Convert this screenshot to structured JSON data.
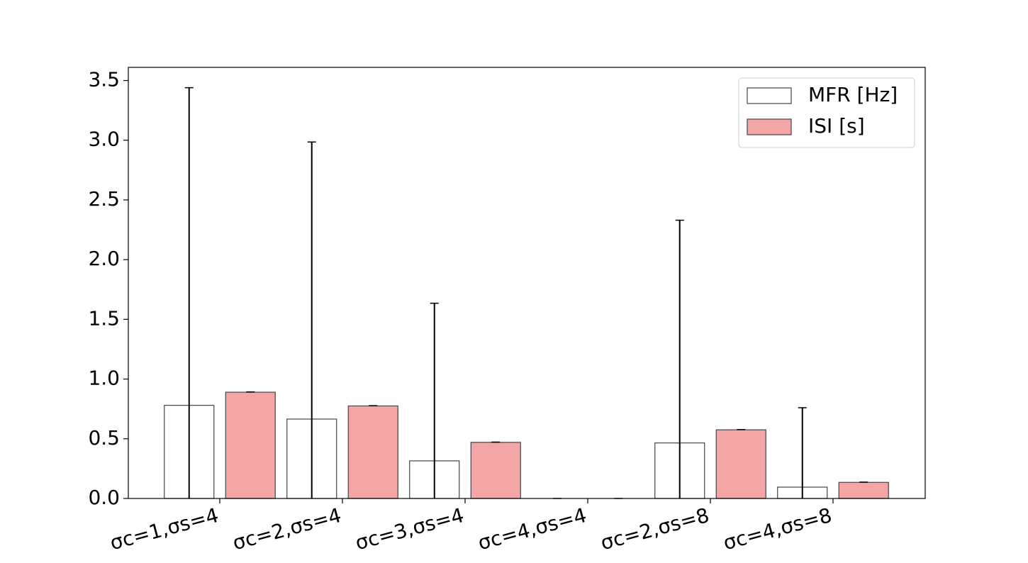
{
  "chart_data": {
    "type": "bar",
    "categories": [
      "σc=1,σs=4",
      "σc=2,σs=4",
      "σc=3,σs=4",
      "σc=4,σs=4",
      "σc=2,σs=8",
      "σc=4,σs=8"
    ],
    "series": [
      {
        "name": "MFR [Hz]",
        "color": "#ffffff",
        "values": [
          0.78,
          0.665,
          0.315,
          0,
          0.465,
          0.095
        ],
        "errors": [
          2.66,
          2.32,
          1.32,
          0,
          1.865,
          0.665
        ]
      },
      {
        "name": "ISI [s]",
        "color": "#f4a6a6",
        "values": [
          0.89,
          0.775,
          0.47,
          0,
          0.575,
          0.135
        ],
        "errors": [
          0.002,
          0.002,
          0.002,
          0,
          0.002,
          0.002
        ]
      }
    ],
    "ylim": [
      0,
      3.61
    ],
    "yticks": [
      {
        "value": 0,
        "label": "0.0"
      },
      0.5,
      {
        "value": 1,
        "label": "1.0"
      },
      1.5,
      {
        "value": 2,
        "label": "2.0"
      },
      2.5,
      {
        "value": 3,
        "label": "3.0"
      },
      3.5
    ],
    "legend": "upper right"
  }
}
